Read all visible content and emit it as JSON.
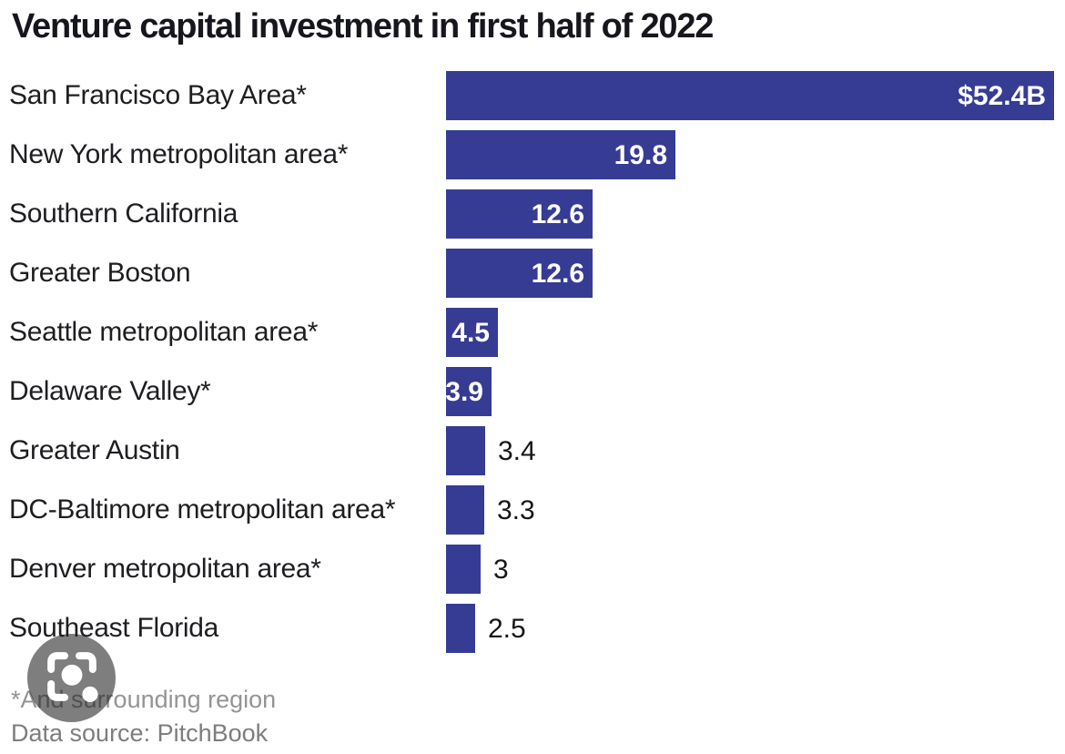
{
  "title": "Venture capital investment in first half of 2022",
  "chart_data": {
    "type": "bar",
    "orientation": "horizontal",
    "title": "Venture capital investment in first half of 2022",
    "xlabel": "",
    "ylabel": "",
    "xlim": [
      0,
      52.4
    ],
    "grid": false,
    "legend": "none",
    "categories": [
      "San Francisco Bay Area*",
      "New York metropolitan area*",
      "Southern California",
      "Greater Boston",
      "Seattle metropolitan area*",
      "Delaware Valley*",
      "Greater Austin",
      "DC-Baltimore metropolitan area*",
      "Denver metropolitan area*",
      "Southeast Florida"
    ],
    "values": [
      52.4,
      19.8,
      12.6,
      12.6,
      4.5,
      3.9,
      3.4,
      3.3,
      3,
      2.5
    ],
    "value_labels": [
      "$52.4B",
      "19.8",
      "12.6",
      "12.6",
      "4.5",
      "3.9",
      "3.4",
      "3.3",
      "3",
      "2.5"
    ],
    "value_label_positions": [
      "inside",
      "inside",
      "inside",
      "inside",
      "inside",
      "inside",
      "outside",
      "outside",
      "outside",
      "outside"
    ]
  },
  "colors": {
    "bar": "#363c93",
    "value_inside_text": "#ffffff",
    "value_outside_text": "#161616",
    "category_text": "#1e1e22",
    "title_text": "#16161d",
    "footnote_text": "#949494",
    "source_text": "#7d7d7d",
    "lens_circle": "rgba(28,28,28,0.57)"
  },
  "footnotes": {
    "asterisk_note": "*And surrounding region",
    "source": "Data source: PitchBook"
  },
  "lens_button": {
    "icon": "google-lens-icon"
  }
}
